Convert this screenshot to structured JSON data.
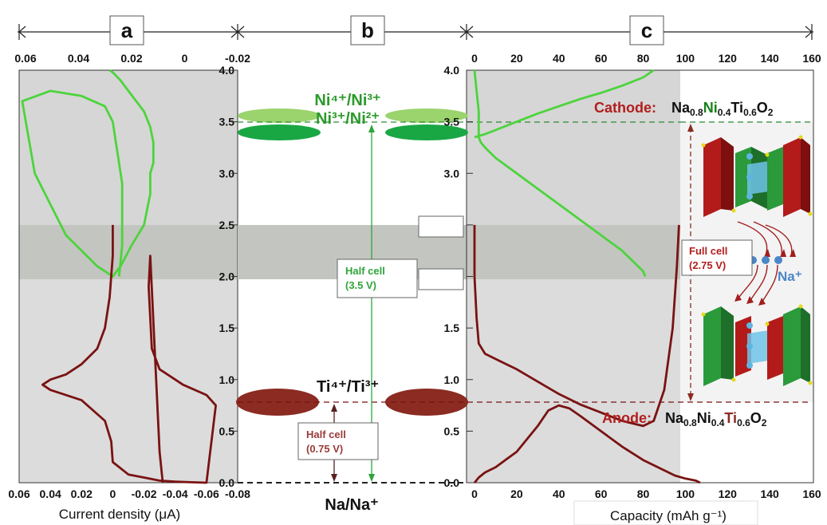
{
  "panels": {
    "a": "a",
    "b": "b",
    "c": "c"
  },
  "colors": {
    "green": "#4cd43c",
    "darkred": "#7a1212",
    "ni_green": "#1a7f1a",
    "cathode_red": "#b21e1e",
    "ti_red": "#8b2b22",
    "na_blue": "#4a86c8"
  },
  "panel_a": {
    "xlabel": "Current density (μA)",
    "top_ticks": [
      "0.06",
      "0.04",
      "0.02",
      "0",
      "-0.02"
    ],
    "bottom_ticks": [
      "0.06",
      "0.04",
      "0.02",
      "0",
      "-0.02",
      "-0.04",
      "-0.06",
      "-0.08"
    ]
  },
  "panel_b": {
    "ni_high": "Ni⁴⁺/Ni³⁺",
    "ni_low": "Ni³⁺/Ni²⁺",
    "ti": "Ti⁴⁺/Ti³⁺",
    "ref": "Na/Na⁺",
    "half_cell_green": [
      "Half cell",
      "(3.5 V)"
    ],
    "half_cell_red": [
      "Half cell",
      "(0.75 V)"
    ]
  },
  "voltage_ticks": [
    "4.0",
    "3.5",
    "3.0",
    "2.5",
    "2.0",
    "1.5",
    "1.0",
    "0.5",
    "0.0"
  ],
  "panel_c": {
    "xlabel": "Capacity (mAh g⁻¹)",
    "x_ticks": [
      "0",
      "20",
      "40",
      "60",
      "80",
      "100",
      "120",
      "140",
      "160"
    ],
    "cathode_label": "Cathode:",
    "anode_label": "Anode:",
    "formula_parts": [
      "Na",
      "0.8",
      "Ni",
      "0.4",
      "Ti",
      "0.6",
      "O",
      "2"
    ],
    "full_cell": [
      "Full cell",
      "(2.75 V)"
    ],
    "na_ion": "Na⁺"
  },
  "chart_data": [
    {
      "type": "line",
      "title": "",
      "xlabel": "Current density (μA)",
      "ylabel": "",
      "xlim": [
        0.06,
        -0.08
      ],
      "ylim": [
        0,
        4
      ],
      "series": [
        {
          "x": [
            0.002,
            0.0,
            -0.005,
            -0.01,
            -0.015,
            -0.02,
            -0.024,
            -0.026,
            -0.026,
            -0.024,
            -0.024,
            -0.02,
            -0.012,
            -0.005,
            0.0,
            0.01,
            0.03,
            0.05,
            0.058,
            0.04,
            0.02,
            0.005,
            0.0,
            -0.002,
            -0.004,
            -0.006,
            -0.006,
            -0.006,
            -0.004
          ],
          "y": [
            4.0,
            3.98,
            3.9,
            3.8,
            3.7,
            3.6,
            3.45,
            3.3,
            3.1,
            3.0,
            2.8,
            2.5,
            2.3,
            2.1,
            2.0,
            2.1,
            2.4,
            3.0,
            3.7,
            3.8,
            3.75,
            3.65,
            3.5,
            3.3,
            3.1,
            2.9,
            2.6,
            2.3,
            2.0
          ]
        },
        {
          "x": [
            0.0,
            0.0,
            0.002,
            0.005,
            0.01,
            0.02,
            0.03,
            0.04,
            0.045,
            0.04,
            0.02,
            0.005,
            0.001,
            0.0,
            -0.01,
            -0.02,
            -0.03,
            -0.04,
            -0.05,
            -0.06,
            -0.066,
            -0.06,
            -0.045,
            -0.03,
            -0.025,
            -0.024,
            -0.023,
            -0.024,
            -0.03,
            -0.032
          ],
          "y": [
            2.5,
            2.2,
            1.8,
            1.5,
            1.3,
            1.15,
            1.05,
            1.0,
            0.95,
            0.9,
            0.8,
            0.6,
            0.4,
            0.2,
            0.08,
            0.05,
            0.02,
            0.01,
            0.005,
            0.0,
            0.75,
            0.85,
            0.95,
            1.1,
            1.3,
            1.6,
            1.9,
            2.2,
            0.3,
            0.0
          ]
        }
      ]
    },
    {
      "type": "line",
      "title": "",
      "xlabel": "Capacity (mAh g⁻¹)",
      "ylabel": "",
      "xlim": [
        0,
        160
      ],
      "ylim": [
        0,
        4
      ],
      "series": [
        {
          "x": [
            0,
            1,
            2,
            2,
            3,
            5,
            10,
            20,
            30,
            40,
            50,
            60,
            70,
            80,
            81
          ],
          "y": [
            4.0,
            3.8,
            3.6,
            3.35,
            3.3,
            3.25,
            3.15,
            3.0,
            2.85,
            2.7,
            2.55,
            2.4,
            2.25,
            2.05,
            2.0
          ]
        },
        {
          "x": [
            0,
            5,
            10,
            20,
            30,
            40,
            50,
            60,
            70,
            80,
            85
          ],
          "y": [
            3.35,
            3.38,
            3.42,
            3.5,
            3.58,
            3.65,
            3.72,
            3.78,
            3.85,
            3.93,
            4.0
          ]
        },
        {
          "x": [
            0,
            0,
            1,
            2,
            5,
            10,
            20,
            30,
            40,
            50,
            60,
            70,
            80,
            85,
            90,
            94,
            96,
            97
          ],
          "y": [
            2.5,
            2.0,
            1.6,
            1.35,
            1.25,
            1.2,
            1.1,
            0.98,
            0.86,
            0.76,
            0.68,
            0.6,
            0.55,
            0.6,
            0.9,
            1.5,
            2.1,
            2.5
          ]
        },
        {
          "x": [
            0,
            2,
            5,
            10,
            20,
            30,
            35,
            40,
            45,
            50,
            60,
            70,
            80,
            90,
            95,
            100,
            105,
            107
          ],
          "y": [
            0.0,
            0.05,
            0.1,
            0.15,
            0.3,
            0.55,
            0.7,
            0.75,
            0.72,
            0.65,
            0.5,
            0.35,
            0.22,
            0.12,
            0.07,
            0.04,
            0.02,
            0.0
          ]
        }
      ]
    }
  ]
}
